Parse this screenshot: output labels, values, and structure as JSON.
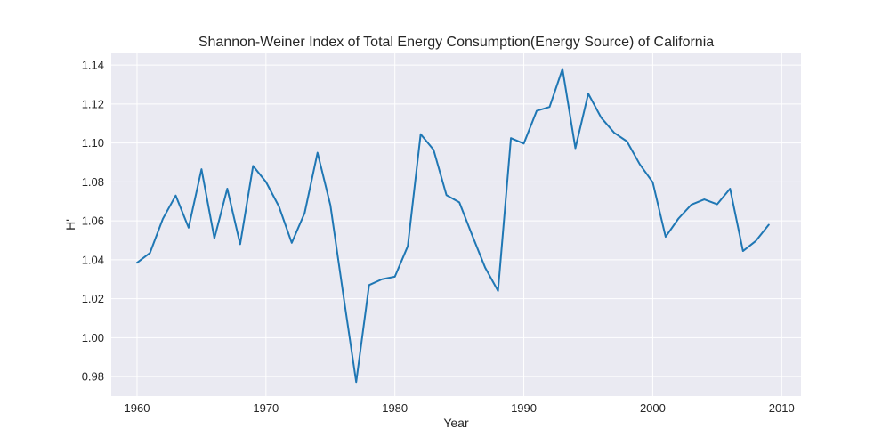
{
  "chart_data": {
    "type": "line",
    "title": "Shannon-Weiner Index of Total Energy Consumption(Energy Source) of California",
    "xlabel": "Year",
    "ylabel": "H'",
    "xlim": [
      1958,
      2011.5
    ],
    "ylim": [
      0.97,
      1.146
    ],
    "xticks": [
      1960,
      1970,
      1980,
      1990,
      2000,
      2010
    ],
    "yticks": [
      0.98,
      1.0,
      1.02,
      1.04,
      1.06,
      1.08,
      1.1,
      1.12,
      1.14
    ],
    "ytick_labels": [
      "0.98",
      "1.00",
      "1.02",
      "1.04",
      "1.06",
      "1.08",
      "1.10",
      "1.12",
      "1.14"
    ],
    "grid": true,
    "background": "#eaeaf2",
    "series": [
      {
        "color": "#1f77b4",
        "x": [
          1960,
          1961,
          1962,
          1963,
          1964,
          1965,
          1966,
          1967,
          1968,
          1969,
          1970,
          1971,
          1972,
          1973,
          1974,
          1975,
          1976,
          1977,
          1978,
          1979,
          1980,
          1981,
          1982,
          1983,
          1984,
          1985,
          1986,
          1987,
          1988,
          1989,
          1990,
          1991,
          1992,
          1993,
          1994,
          1995,
          1996,
          1997,
          1998,
          1999,
          2000,
          2001,
          2002,
          2003,
          2004,
          2005,
          2006,
          2007,
          2008,
          2009
        ],
        "values": [
          1.0385,
          1.0435,
          1.061,
          1.073,
          1.0565,
          1.0865,
          1.051,
          1.0765,
          1.048,
          1.0882,
          1.08,
          1.0675,
          1.0487,
          1.064,
          1.095,
          1.068,
          1.022,
          0.9772,
          1.027,
          1.03,
          1.0313,
          1.047,
          1.1045,
          1.0965,
          1.0732,
          1.0695,
          1.0525,
          1.036,
          1.024,
          1.1025,
          1.0997,
          1.1165,
          1.1185,
          1.138,
          1.0973,
          1.1253,
          1.113,
          1.1053,
          1.1008,
          1.089,
          1.0798,
          1.0518,
          1.0612,
          1.0683,
          1.071,
          1.0685,
          1.0765,
          1.0445,
          1.0497,
          1.058
        ]
      }
    ]
  }
}
